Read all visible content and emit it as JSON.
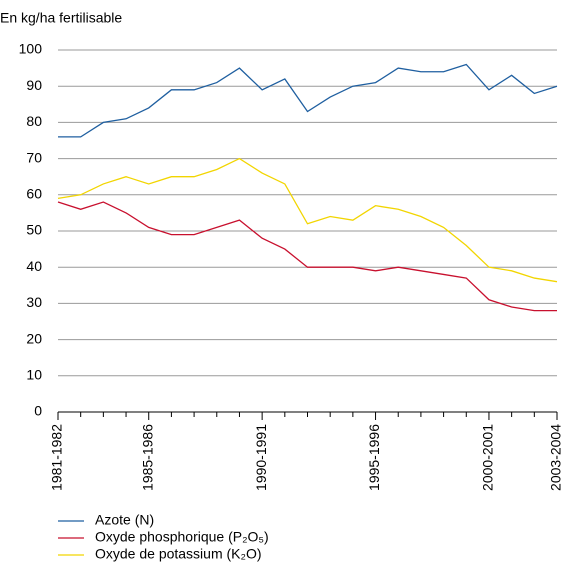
{
  "chart_data": {
    "type": "line",
    "title": "En kg/ha fertilisable",
    "categories": [
      "1981-1982",
      null,
      null,
      null,
      "1985-1986",
      null,
      null,
      null,
      null,
      "1990-1991",
      null,
      null,
      null,
      null,
      "1995-1996",
      null,
      null,
      null,
      null,
      "2000-2001",
      null,
      null,
      "2003-2004"
    ],
    "series": [
      {
        "name": "Azote (N)",
        "color": "#1f5fa0",
        "values": [
          76,
          76,
          80,
          81,
          84,
          89,
          89,
          91,
          95,
          89,
          92,
          83,
          87,
          90,
          91,
          95,
          94,
          94,
          96,
          89,
          93,
          88,
          90
        ]
      },
      {
        "name": "Oxyde phosphorique (P₂O₅)",
        "color": "#c8102e",
        "values": [
          58,
          56,
          58,
          55,
          51,
          49,
          49,
          51,
          53,
          48,
          45,
          40,
          40,
          40,
          39,
          40,
          39,
          38,
          37,
          31,
          29,
          28,
          28
        ]
      },
      {
        "name": "Oxyde de potassium (K₂O)",
        "color": "#f2d500",
        "values": [
          59,
          60,
          63,
          65,
          63,
          65,
          65,
          67,
          70,
          66,
          63,
          52,
          54,
          53,
          57,
          56,
          54,
          51,
          46,
          40,
          39,
          37,
          36
        ]
      }
    ],
    "ylim": [
      0,
      100
    ],
    "yticks": [
      0,
      10,
      20,
      30,
      40,
      50,
      60,
      70,
      80,
      90,
      100
    ],
    "grid": true
  }
}
